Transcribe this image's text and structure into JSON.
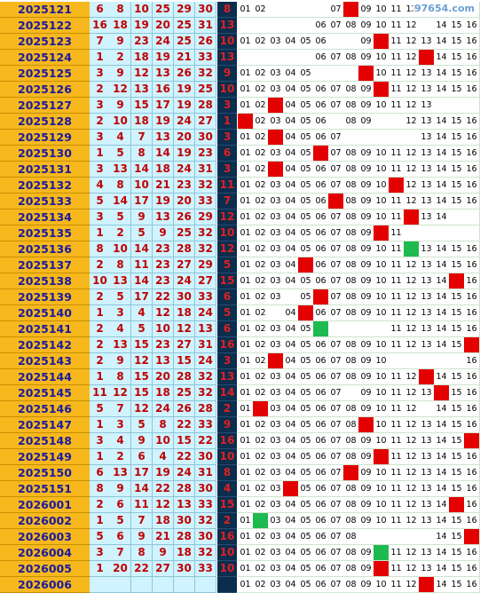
{
  "watermark": "97654.com",
  "colors": {
    "issue_bg": "#f6b81c",
    "red_ball_bg": "#cff3ff",
    "blue_col_bg": "#0b2d4e",
    "hit_red": "#e30000",
    "hit_green": "#1dba50"
  },
  "rows": [
    {
      "issue": "2025121",
      "reds": [
        "6",
        "8",
        "10",
        "25",
        "29",
        "30"
      ],
      "blue": "8",
      "cells": [
        "01",
        "02",
        "",
        "",
        "",
        "",
        "07",
        "r",
        "09",
        "10",
        "11",
        "12",
        "",
        "",
        "",
        ""
      ]
    },
    {
      "issue": "2025122",
      "reds": [
        "16",
        "18",
        "19",
        "20",
        "25",
        "31"
      ],
      "blue": "13",
      "cells": [
        "",
        "",
        "",
        "",
        "",
        "06",
        "07",
        "08",
        "09",
        "10",
        "11",
        "12",
        "",
        "14",
        "15",
        "16"
      ]
    },
    {
      "issue": "2025123",
      "reds": [
        "7",
        "9",
        "23",
        "24",
        "25",
        "26"
      ],
      "blue": "10",
      "cells": [
        "01",
        "02",
        "03",
        "04",
        "05",
        "06",
        "",
        "",
        "09",
        "r",
        "11",
        "12",
        "13",
        "14",
        "15",
        "16"
      ]
    },
    {
      "issue": "2025124",
      "reds": [
        "1",
        "2",
        "18",
        "19",
        "21",
        "33"
      ],
      "blue": "13",
      "cells": [
        "",
        "",
        "",
        "",
        "",
        "06",
        "07",
        "08",
        "09",
        "10",
        "11",
        "12",
        "r",
        "14",
        "15",
        "16"
      ]
    },
    {
      "issue": "2025125",
      "reds": [
        "3",
        "9",
        "12",
        "13",
        "26",
        "32"
      ],
      "blue": "9",
      "cells": [
        "01",
        "02",
        "03",
        "04",
        "05",
        "",
        "",
        "",
        "r",
        "10",
        "11",
        "12",
        "13",
        "14",
        "15",
        "16"
      ]
    },
    {
      "issue": "2025126",
      "reds": [
        "2",
        "12",
        "13",
        "16",
        "19",
        "25"
      ],
      "blue": "10",
      "cells": [
        "01",
        "02",
        "03",
        "04",
        "05",
        "06",
        "07",
        "08",
        "09",
        "r",
        "11",
        "12",
        "13",
        "14",
        "15",
        "16"
      ]
    },
    {
      "issue": "2025127",
      "reds": [
        "3",
        "9",
        "15",
        "17",
        "19",
        "28"
      ],
      "blue": "3",
      "cells": [
        "01",
        "02",
        "r",
        "04",
        "05",
        "06",
        "07",
        "08",
        "09",
        "10",
        "11",
        "12",
        "13",
        "",
        "",
        ""
      ]
    },
    {
      "issue": "2025128",
      "reds": [
        "2",
        "10",
        "18",
        "19",
        "24",
        "27"
      ],
      "blue": "1",
      "cells": [
        "r",
        "02",
        "03",
        "04",
        "05",
        "06",
        "",
        "08",
        "09",
        "",
        "",
        "12",
        "13",
        "14",
        "15",
        "16"
      ]
    },
    {
      "issue": "2025129",
      "reds": [
        "3",
        "4",
        "7",
        "13",
        "20",
        "30"
      ],
      "blue": "3",
      "cells": [
        "01",
        "02",
        "r",
        "04",
        "05",
        "06",
        "07",
        "",
        "",
        "",
        "",
        "",
        "13",
        "14",
        "15",
        "16"
      ]
    },
    {
      "issue": "2025130",
      "reds": [
        "1",
        "5",
        "8",
        "14",
        "19",
        "23"
      ],
      "blue": "6",
      "cells": [
        "01",
        "02",
        "03",
        "04",
        "05",
        "r",
        "07",
        "08",
        "09",
        "10",
        "11",
        "12",
        "13",
        "14",
        "15",
        "16"
      ]
    },
    {
      "issue": "2025131",
      "reds": [
        "3",
        "13",
        "14",
        "18",
        "24",
        "31"
      ],
      "blue": "3",
      "cells": [
        "01",
        "02",
        "r",
        "04",
        "05",
        "06",
        "07",
        "08",
        "09",
        "10",
        "11",
        "12",
        "13",
        "14",
        "15",
        "16"
      ]
    },
    {
      "issue": "2025132",
      "reds": [
        "4",
        "8",
        "10",
        "21",
        "23",
        "32"
      ],
      "blue": "11",
      "cells": [
        "01",
        "02",
        "03",
        "04",
        "05",
        "06",
        "07",
        "08",
        "09",
        "10",
        "r",
        "12",
        "13",
        "14",
        "15",
        "16"
      ]
    },
    {
      "issue": "2025133",
      "reds": [
        "5",
        "14",
        "17",
        "19",
        "20",
        "33"
      ],
      "blue": "7",
      "cells": [
        "01",
        "02",
        "03",
        "04",
        "05",
        "06",
        "r",
        "08",
        "09",
        "10",
        "11",
        "12",
        "13",
        "14",
        "15",
        "16"
      ]
    },
    {
      "issue": "2025134",
      "reds": [
        "3",
        "5",
        "9",
        "13",
        "26",
        "29"
      ],
      "blue": "12",
      "cells": [
        "01",
        "02",
        "03",
        "04",
        "05",
        "06",
        "07",
        "08",
        "09",
        "10",
        "11",
        "r",
        "13",
        "14",
        "",
        ""
      ]
    },
    {
      "issue": "2025135",
      "reds": [
        "1",
        "2",
        "5",
        "9",
        "25",
        "32"
      ],
      "blue": "10",
      "cells": [
        "01",
        "02",
        "03",
        "04",
        "05",
        "06",
        "07",
        "08",
        "09",
        "r",
        "11",
        "",
        "",
        "",
        "",
        ""
      ]
    },
    {
      "issue": "2025136",
      "reds": [
        "8",
        "10",
        "14",
        "23",
        "28",
        "32"
      ],
      "blue": "12",
      "cells": [
        "01",
        "02",
        "03",
        "04",
        "05",
        "06",
        "07",
        "08",
        "09",
        "10",
        "11",
        "g",
        "13",
        "14",
        "15",
        "16"
      ]
    },
    {
      "issue": "2025137",
      "reds": [
        "2",
        "8",
        "11",
        "23",
        "27",
        "29"
      ],
      "blue": "5",
      "cells": [
        "01",
        "02",
        "03",
        "04",
        "r",
        "06",
        "07",
        "08",
        "09",
        "10",
        "11",
        "12",
        "13",
        "14",
        "15",
        "16"
      ]
    },
    {
      "issue": "2025138",
      "reds": [
        "10",
        "13",
        "14",
        "23",
        "24",
        "27"
      ],
      "blue": "15",
      "cells": [
        "01",
        "02",
        "03",
        "04",
        "05",
        "06",
        "07",
        "08",
        "09",
        "10",
        "11",
        "12",
        "13",
        "14",
        "r",
        "16"
      ]
    },
    {
      "issue": "2025139",
      "reds": [
        "2",
        "5",
        "17",
        "22",
        "30",
        "33"
      ],
      "blue": "6",
      "cells": [
        "01",
        "02",
        "03",
        "",
        "05",
        "r",
        "07",
        "08",
        "09",
        "10",
        "11",
        "12",
        "13",
        "14",
        "15",
        "16"
      ]
    },
    {
      "issue": "2025140",
      "reds": [
        "1",
        "3",
        "4",
        "12",
        "18",
        "24"
      ],
      "blue": "5",
      "cells": [
        "01",
        "02",
        "",
        "04",
        "r",
        "06",
        "07",
        "08",
        "09",
        "10",
        "11",
        "12",
        "13",
        "14",
        "15",
        "16"
      ]
    },
    {
      "issue": "2025141",
      "reds": [
        "2",
        "4",
        "5",
        "10",
        "12",
        "13"
      ],
      "blue": "6",
      "cells": [
        "01",
        "02",
        "03",
        "04",
        "05",
        "g",
        "",
        "",
        "",
        "",
        "11",
        "12",
        "13",
        "14",
        "15",
        "16"
      ]
    },
    {
      "issue": "2025142",
      "reds": [
        "2",
        "13",
        "15",
        "23",
        "27",
        "31"
      ],
      "blue": "16",
      "cells": [
        "01",
        "02",
        "03",
        "04",
        "05",
        "06",
        "07",
        "08",
        "09",
        "10",
        "11",
        "12",
        "13",
        "14",
        "15",
        "r"
      ]
    },
    {
      "issue": "2025143",
      "reds": [
        "2",
        "9",
        "12",
        "13",
        "15",
        "24"
      ],
      "blue": "3",
      "cells": [
        "01",
        "02",
        "r",
        "04",
        "05",
        "06",
        "07",
        "08",
        "09",
        "10",
        "",
        "",
        "",
        "",
        "",
        "16"
      ]
    },
    {
      "issue": "2025144",
      "reds": [
        "1",
        "8",
        "15",
        "20",
        "28",
        "32"
      ],
      "blue": "13",
      "cells": [
        "01",
        "02",
        "03",
        "04",
        "05",
        "06",
        "07",
        "08",
        "09",
        "10",
        "11",
        "12",
        "r",
        "14",
        "15",
        "16"
      ]
    },
    {
      "issue": "2025145",
      "reds": [
        "11",
        "12",
        "15",
        "18",
        "25",
        "32"
      ],
      "blue": "14",
      "cells": [
        "01",
        "02",
        "03",
        "04",
        "05",
        "06",
        "07",
        "",
        "09",
        "10",
        "11",
        "12",
        "13",
        "r",
        "15",
        "16"
      ]
    },
    {
      "issue": "2025146",
      "reds": [
        "5",
        "7",
        "12",
        "24",
        "26",
        "28"
      ],
      "blue": "2",
      "cells": [
        "01",
        "r",
        "03",
        "04",
        "05",
        "06",
        "07",
        "08",
        "09",
        "10",
        "11",
        "12",
        "",
        "14",
        "15",
        "16"
      ]
    },
    {
      "issue": "2025147",
      "reds": [
        "1",
        "3",
        "5",
        "8",
        "22",
        "33"
      ],
      "blue": "9",
      "cells": [
        "01",
        "02",
        "03",
        "04",
        "05",
        "06",
        "07",
        "08",
        "r",
        "10",
        "11",
        "12",
        "13",
        "14",
        "15",
        "16"
      ]
    },
    {
      "issue": "2025148",
      "reds": [
        "3",
        "4",
        "9",
        "10",
        "15",
        "22"
      ],
      "blue": "16",
      "cells": [
        "01",
        "02",
        "03",
        "04",
        "05",
        "06",
        "07",
        "08",
        "09",
        "10",
        "11",
        "12",
        "13",
        "14",
        "15",
        "r"
      ]
    },
    {
      "issue": "2025149",
      "reds": [
        "1",
        "2",
        "6",
        "4",
        "22",
        "30"
      ],
      "blue": "10",
      "cells": [
        "01",
        "02",
        "03",
        "04",
        "05",
        "06",
        "07",
        "08",
        "09",
        "r",
        "11",
        "12",
        "13",
        "14",
        "15",
        "16"
      ]
    },
    {
      "issue": "2025150",
      "reds": [
        "6",
        "13",
        "17",
        "19",
        "24",
        "31"
      ],
      "blue": "8",
      "cells": [
        "01",
        "02",
        "03",
        "04",
        "05",
        "06",
        "07",
        "r",
        "09",
        "10",
        "11",
        "12",
        "13",
        "14",
        "15",
        "16"
      ]
    },
    {
      "issue": "2025151",
      "reds": [
        "8",
        "9",
        "14",
        "22",
        "28",
        "30"
      ],
      "blue": "4",
      "cells": [
        "01",
        "02",
        "03",
        "r",
        "05",
        "06",
        "07",
        "08",
        "09",
        "10",
        "11",
        "12",
        "13",
        "14",
        "15",
        "16"
      ]
    },
    {
      "issue": "2026001",
      "reds": [
        "2",
        "6",
        "11",
        "12",
        "13",
        "33"
      ],
      "blue": "15",
      "cells": [
        "01",
        "02",
        "03",
        "04",
        "05",
        "06",
        "07",
        "08",
        "09",
        "10",
        "11",
        "12",
        "13",
        "14",
        "r",
        "16"
      ]
    },
    {
      "issue": "2026002",
      "reds": [
        "1",
        "5",
        "7",
        "18",
        "30",
        "32"
      ],
      "blue": "2",
      "cells": [
        "01",
        "g",
        "03",
        "04",
        "05",
        "06",
        "07",
        "08",
        "09",
        "10",
        "11",
        "12",
        "13",
        "14",
        "15",
        "16"
      ]
    },
    {
      "issue": "2026003",
      "reds": [
        "5",
        "6",
        "9",
        "21",
        "28",
        "30"
      ],
      "blue": "16",
      "cells": [
        "01",
        "02",
        "03",
        "04",
        "05",
        "06",
        "07",
        "08",
        "",
        "",
        "",
        "",
        "",
        "14",
        "15",
        "r"
      ]
    },
    {
      "issue": "2026004",
      "reds": [
        "3",
        "7",
        "8",
        "9",
        "18",
        "32"
      ],
      "blue": "10",
      "cells": [
        "01",
        "02",
        "03",
        "04",
        "05",
        "06",
        "07",
        "08",
        "09",
        "g",
        "11",
        "12",
        "13",
        "14",
        "15",
        "16"
      ]
    },
    {
      "issue": "2026005",
      "reds": [
        "1",
        "20",
        "22",
        "27",
        "30",
        "33"
      ],
      "blue": "10",
      "cells": [
        "01",
        "02",
        "03",
        "04",
        "05",
        "06",
        "07",
        "08",
        "09",
        "r",
        "11",
        "12",
        "13",
        "14",
        "15",
        "16"
      ]
    },
    {
      "issue": "2026006",
      "reds": [
        "",
        "",
        "",
        "",
        "",
        ""
      ],
      "blue": "",
      "cells": [
        "01",
        "02",
        "03",
        "04",
        "05",
        "06",
        "07",
        "08",
        "09",
        "10",
        "11",
        "12",
        "r",
        "14",
        "15",
        "16"
      ]
    }
  ]
}
